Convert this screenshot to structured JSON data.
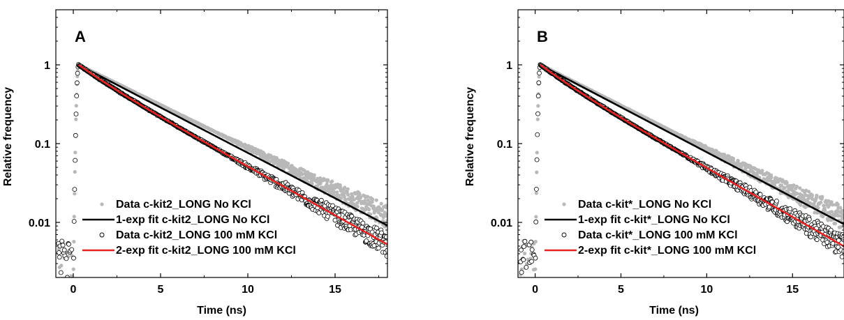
{
  "chart_data": [
    {
      "type": "scatter",
      "panel_label": "A",
      "xlabel": "Time (ns)",
      "ylabel": "Relative frequency",
      "xlim": [
        -1,
        18
      ],
      "ylim": [
        0.002,
        5
      ],
      "yscale": "log",
      "xticks": [
        0,
        5,
        10,
        15
      ],
      "yticks": [
        0.01,
        0.1,
        1
      ],
      "ytick_labels": [
        "0.01",
        "0.1",
        "1"
      ],
      "legend_position": "bottom-right",
      "series": [
        {
          "name": "Data c-kit2_LONG No KCl",
          "kind": "points",
          "marker": "filled-circle",
          "color": "#b8b8b8",
          "peak_t": 0.3,
          "tau1": 4.0,
          "frac": 1.0
        },
        {
          "name": "1-exp fit c-kit2_LONG No KCl",
          "kind": "line",
          "color": "#000000",
          "peak_t": 0.3,
          "tau1": 3.77,
          "frac": 1.0,
          "x": [
            0.3,
            18
          ],
          "y": [
            1.0,
            0.0091
          ]
        },
        {
          "name": "Data c-kit2_LONG 100 mM KCl",
          "kind": "points",
          "marker": "open-circle",
          "color": "#000000",
          "peak_t": 0.3,
          "tau1": 3.52,
          "tau2": 1.5,
          "frac": 0.8
        },
        {
          "name": "2-exp fit c-kit2_LONG 100 mM KCl",
          "kind": "line",
          "color": "#e8201e",
          "peak_t": 0.3,
          "tau1": 3.52,
          "tau2": 1.5,
          "frac": 0.8,
          "x": [
            0.3,
            18
          ],
          "y": [
            1.0,
            0.0051
          ]
        }
      ]
    },
    {
      "type": "scatter",
      "panel_label": "B",
      "xlabel": "Time (ns)",
      "ylabel": "Relative frequency",
      "xlim": [
        -1,
        18
      ],
      "ylim": [
        0.002,
        5
      ],
      "yscale": "log",
      "xticks": [
        0,
        5,
        10,
        15
      ],
      "yticks": [
        0.01,
        0.1,
        1
      ],
      "ytick_labels": [
        "0.01",
        "0.1",
        "1"
      ],
      "legend_position": "bottom-right",
      "series": [
        {
          "name": "Data c-kit*_LONG No KCl",
          "kind": "points",
          "marker": "filled-circle",
          "color": "#b8b8b8",
          "peak_t": 0.3,
          "tau1": 3.95,
          "frac": 1.0
        },
        {
          "name": "1-exp fit c-kit*_LONG No KCl",
          "kind": "line",
          "color": "#000000",
          "peak_t": 0.3,
          "tau1": 3.8,
          "frac": 1.0,
          "x": [
            0.3,
            18
          ],
          "y": [
            1.0,
            0.0094
          ]
        },
        {
          "name": "Data c-kit*_LONG 100 mM KCl",
          "kind": "points",
          "marker": "open-circle",
          "color": "#000000",
          "peak_t": 0.3,
          "tau1": 3.5,
          "tau2": 1.5,
          "frac": 0.78
        },
        {
          "name": "2-exp fit c-kit*_LONG 100 mM KCl",
          "kind": "line",
          "color": "#e8201e",
          "peak_t": 0.3,
          "tau1": 3.5,
          "tau2": 1.5,
          "frac": 0.78,
          "x": [
            0.3,
            18
          ],
          "y": [
            1.0,
            0.0049
          ]
        }
      ]
    }
  ]
}
